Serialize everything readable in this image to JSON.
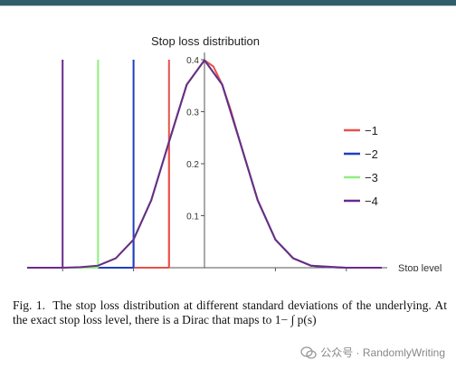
{
  "chart_data": {
    "type": "line",
    "title": "Stop loss distribution",
    "xlabel": "Stop level",
    "ylabel": "",
    "xlim": [
      -5,
      5
    ],
    "ylim": [
      0,
      0.4
    ],
    "x_ticks": [
      -4,
      -2,
      2,
      4
    ],
    "y_ticks": [
      0.1,
      0.2,
      0.3,
      0.4
    ],
    "grid": false,
    "legend_position": "right",
    "series": [
      {
        "name": "−1",
        "color": "#e8524b",
        "stop": -1,
        "points": [
          [
            -1.0,
            0.242
          ],
          [
            -0.5,
            0.352
          ],
          [
            0.0,
            0.399
          ],
          [
            0.25,
            0.387
          ],
          [
            0.5,
            0.352
          ],
          [
            0.75,
            0.301
          ],
          [
            1.0,
            0.242
          ],
          [
            1.5,
            0.13
          ],
          [
            2.0,
            0.054
          ],
          [
            2.5,
            0.018
          ],
          [
            3.0,
            0.004
          ],
          [
            3.5,
            0.001
          ],
          [
            4.0,
            0.0
          ],
          [
            5.0,
            0.0
          ]
        ]
      },
      {
        "name": "−2",
        "color": "#1f3fbf",
        "stop": -2,
        "points": [
          [
            -2.0,
            0.054
          ],
          [
            -1.5,
            0.13
          ],
          [
            -1.0,
            0.242
          ],
          [
            -0.5,
            0.352
          ],
          [
            0.0,
            0.399
          ],
          [
            0.5,
            0.352
          ],
          [
            1.0,
            0.242
          ],
          [
            1.5,
            0.13
          ],
          [
            2.0,
            0.054
          ],
          [
            2.5,
            0.018
          ],
          [
            3.0,
            0.004
          ],
          [
            3.5,
            0.001
          ],
          [
            4.0,
            0.0
          ],
          [
            5.0,
            0.0
          ]
        ]
      },
      {
        "name": "−3",
        "color": "#8ef07a",
        "stop": -3,
        "points": [
          [
            -3.0,
            0.004
          ],
          [
            -2.5,
            0.018
          ],
          [
            -2.0,
            0.054
          ],
          [
            -1.5,
            0.13
          ],
          [
            -1.0,
            0.242
          ],
          [
            -0.5,
            0.352
          ],
          [
            0.0,
            0.399
          ],
          [
            0.5,
            0.352
          ],
          [
            1.0,
            0.242
          ],
          [
            1.5,
            0.13
          ],
          [
            2.0,
            0.054
          ],
          [
            2.5,
            0.018
          ],
          [
            3.0,
            0.004
          ],
          [
            4.0,
            0.0
          ],
          [
            5.0,
            0.0
          ]
        ]
      },
      {
        "name": "−4",
        "color": "#6b2a8a",
        "stop": -4,
        "points": [
          [
            -4.0,
            0.0
          ],
          [
            -3.5,
            0.001
          ],
          [
            -3.0,
            0.004
          ],
          [
            -2.5,
            0.018
          ],
          [
            -2.0,
            0.054
          ],
          [
            -1.5,
            0.13
          ],
          [
            -1.0,
            0.242
          ],
          [
            -0.5,
            0.352
          ],
          [
            0.0,
            0.399
          ],
          [
            0.5,
            0.352
          ],
          [
            1.0,
            0.242
          ],
          [
            1.5,
            0.13
          ],
          [
            2.0,
            0.054
          ],
          [
            2.5,
            0.018
          ],
          [
            3.0,
            0.004
          ],
          [
            4.0,
            0.0
          ],
          [
            5.0,
            0.0
          ]
        ]
      }
    ]
  },
  "caption": {
    "lead": "Fig. 1.",
    "text": "The stop loss distribution at different standard deviations of the underlying. At the exact stop loss level, there is a Dirac that maps to 1− ∫ p(s)"
  },
  "watermark": {
    "text": "公众号 · RandomlyWriting",
    "icon": "wechat-icon"
  }
}
